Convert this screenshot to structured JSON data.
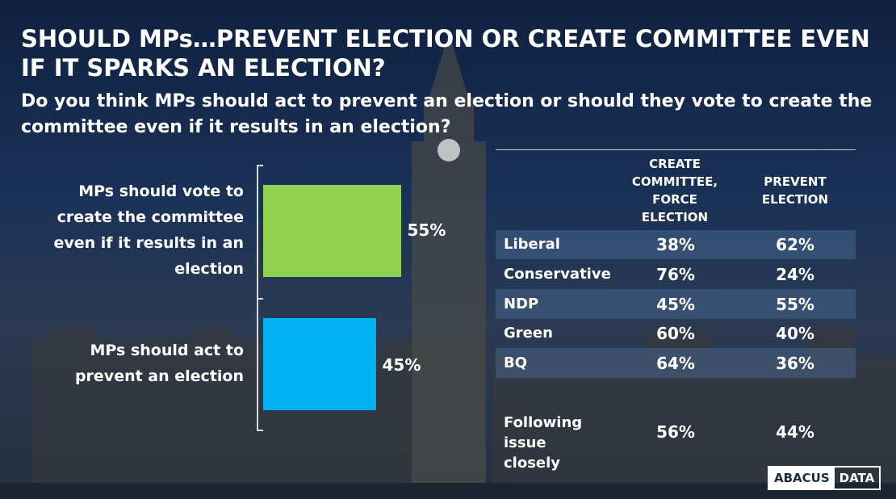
{
  "title": "SHOULD MPs…PREVENT ELECTION OR CREATE COMMITTEE EVEN IF IT SPARKS AN ELECTION?",
  "subtitle": "Do you think MPs should act to prevent an election or should they vote to create the committee even if it results in an election?",
  "colors": {
    "create_bar": "#92d050",
    "prevent_bar": "#00b0f0",
    "row_shade": "#46648c"
  },
  "chart_data": [
    {
      "type": "bar",
      "orientation": "horizontal",
      "categories": [
        "MPs should vote to create the committee even if it results in an election",
        "MPs should act to prevent an election"
      ],
      "values": [
        55,
        45
      ],
      "value_labels": [
        "55%",
        "45%"
      ],
      "xlim": [
        0,
        100
      ],
      "grid": false
    },
    {
      "type": "table",
      "columns": [
        "",
        "CREATE COMMITTEE, FORCE ELECTION",
        "PREVENT ELECTION"
      ],
      "rows": [
        {
          "name": "Liberal",
          "create": "38%",
          "prevent": "62%"
        },
        {
          "name": "Conservative",
          "create": "76%",
          "prevent": "24%"
        },
        {
          "name": "NDP",
          "create": "45%",
          "prevent": "55%"
        },
        {
          "name": "Green",
          "create": "60%",
          "prevent": "40%"
        },
        {
          "name": "BQ",
          "create": "64%",
          "prevent": "36%"
        },
        {
          "name": "Following issue closely",
          "create": "56%",
          "prevent": "44%"
        }
      ]
    }
  ],
  "logo": {
    "part1": "ABACUS",
    "part2": "DATA"
  }
}
